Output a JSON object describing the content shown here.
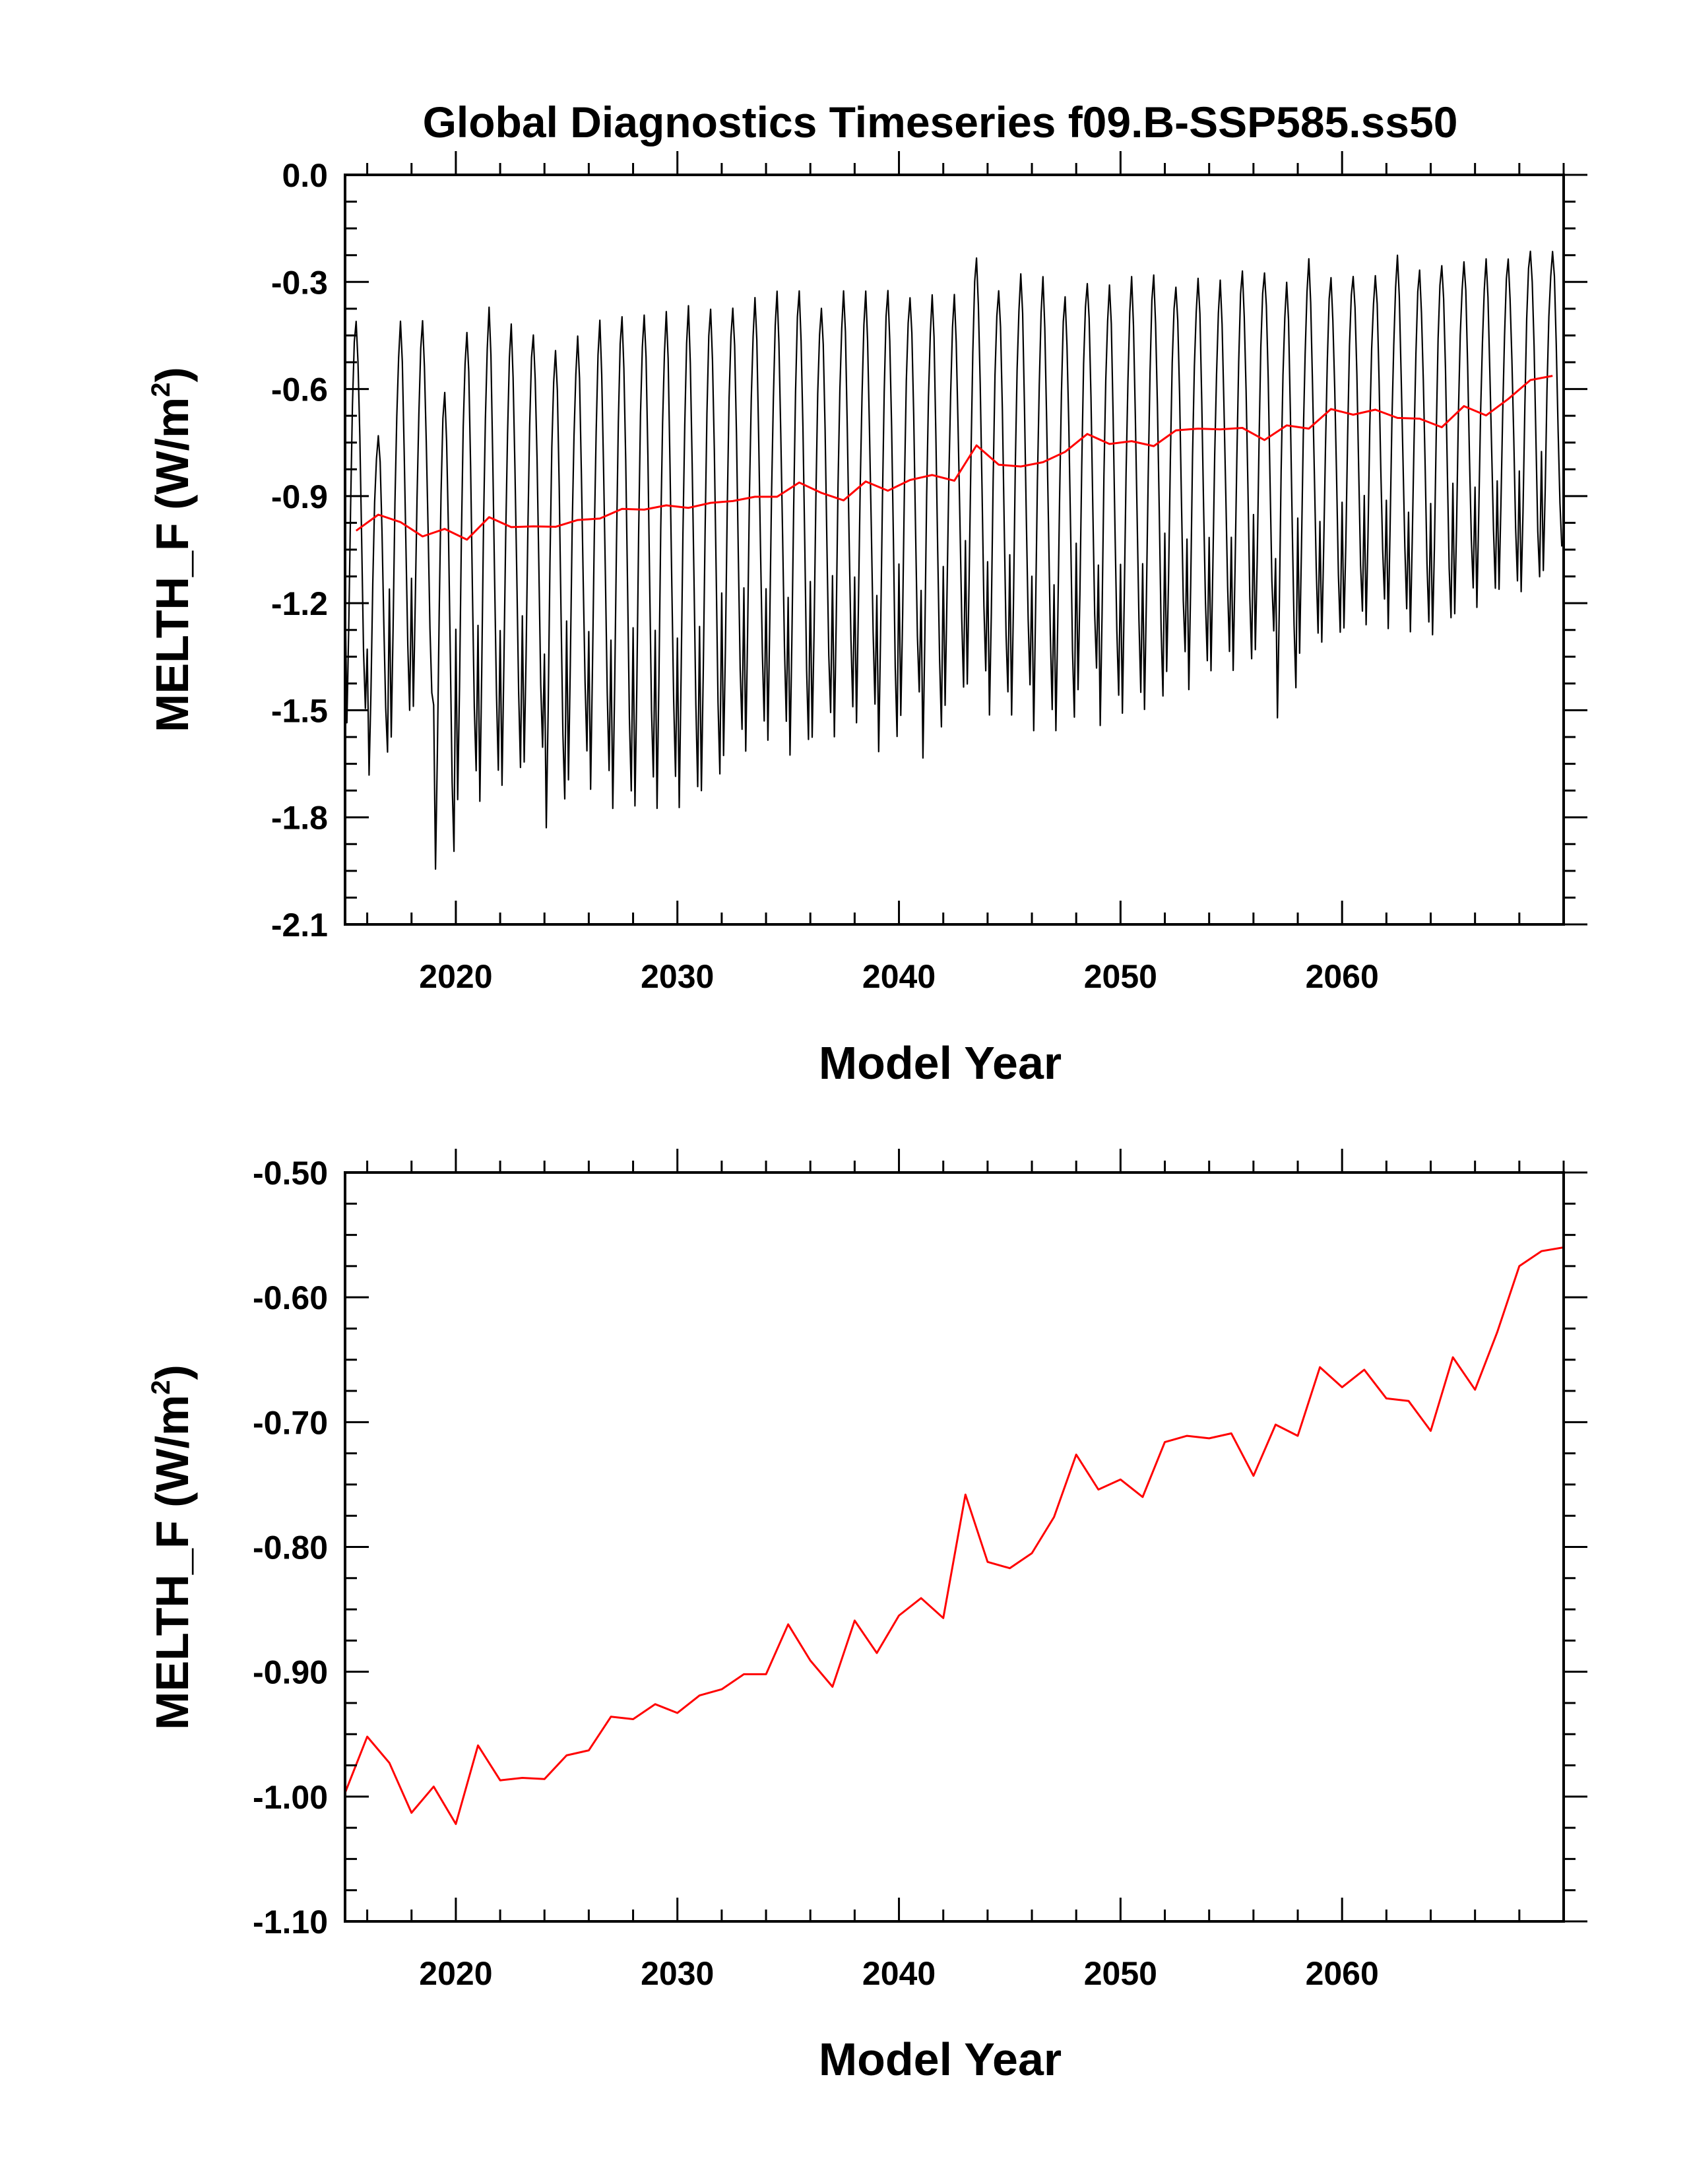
{
  "chart_data": [
    {
      "type": "line",
      "title": "Global Diagnostics Timeseries f09.B-SSP585.ss50",
      "xlabel": "Model Year",
      "ylabel": "MELTH_F (W/m",
      "ylabel_sup": "2",
      "ylabel_close": ")",
      "xlim": [
        2015,
        2070
      ],
      "ylim": [
        -2.1,
        0.0
      ],
      "x_ticks": [
        2020,
        2030,
        2040,
        2050,
        2060
      ],
      "x_tick_labels": [
        "2020",
        "2030",
        "2040",
        "2050",
        "2060"
      ],
      "y_ticks": [
        0.0,
        -0.3,
        -0.6,
        -0.9,
        -1.2,
        -1.5,
        -1.8,
        -2.1
      ],
      "y_tick_labels": [
        "0.0",
        "-0.3",
        "-0.6",
        "-0.9",
        "-1.2",
        "-1.5",
        "-1.8",
        "-2.1"
      ],
      "grid": false,
      "series": [
        {
          "color": "#000000",
          "monthly": true,
          "start_year": 2015,
          "annual_max": [
            -0.4,
            -0.72,
            -0.42,
            -0.42,
            -0.6,
            -0.43,
            -0.38,
            -0.43,
            -0.44,
            -0.48,
            -0.46,
            -0.42,
            -0.39,
            -0.38,
            -0.39,
            -0.38,
            -0.37,
            -0.36,
            -0.35,
            -0.34,
            -0.32,
            -0.36,
            -0.33,
            -0.34,
            -0.32,
            -0.33,
            -0.34,
            -0.35,
            -0.23,
            -0.31,
            -0.28,
            -0.3,
            -0.34,
            -0.29,
            -0.31,
            -0.3,
            -0.28,
            -0.3,
            -0.29,
            -0.31,
            -0.27,
            -0.26,
            -0.3,
            -0.25,
            -0.29,
            -0.27,
            -0.28,
            -0.24,
            -0.27,
            -0.24,
            -0.24,
            -0.25,
            -0.24,
            -0.2,
            -0.21
          ],
          "annual_min": [
            -1.55,
            -1.68,
            -1.56,
            -1.49,
            -1.96,
            -1.75,
            -1.74,
            -1.71,
            -1.66,
            -1.83,
            -1.68,
            -1.72,
            -1.79,
            -1.77,
            -1.76,
            -1.77,
            -1.74,
            -1.63,
            -1.6,
            -1.58,
            -1.64,
            -1.58,
            -1.56,
            -1.53,
            -1.63,
            -1.52,
            -1.62,
            -1.48,
            -1.44,
            -1.52,
            -1.5,
            -1.55,
            -1.57,
            -1.45,
            -1.53,
            -1.5,
            -1.51,
            -1.4,
            -1.43,
            -1.38,
            -1.4,
            -1.34,
            -1.51,
            -1.33,
            -1.32,
            -1.28,
            -1.25,
            -1.26,
            -1.29,
            -1.3,
            -1.22,
            -1.2,
            -1.17,
            -1.18,
            -1.1
          ]
        },
        {
          "color": "#ff0000",
          "x": [
            2015.5,
            2016.5,
            2017.5,
            2018.5,
            2019.5,
            2020.5,
            2021.5,
            2022.5,
            2023.5,
            2024.5,
            2025.5,
            2026.5,
            2027.5,
            2028.5,
            2029.5,
            2030.5,
            2031.5,
            2032.5,
            2033.5,
            2034.5,
            2035.5,
            2036.5,
            2037.5,
            2038.5,
            2039.5,
            2040.5,
            2041.5,
            2042.5,
            2043.5,
            2044.5,
            2045.5,
            2046.5,
            2047.5,
            2048.5,
            2049.5,
            2050.5,
            2051.5,
            2052.5,
            2053.5,
            2054.5,
            2055.5,
            2056.5,
            2057.5,
            2058.5,
            2059.5,
            2060.5,
            2061.5,
            2062.5,
            2063.5,
            2064.5,
            2065.5,
            2066.5,
            2067.5,
            2068.5,
            2069.5
          ],
          "values": [
            -0.997,
            -0.952,
            -0.973,
            -1.013,
            -0.992,
            -1.022,
            -0.959,
            -0.987,
            -0.985,
            -0.986,
            -0.967,
            -0.963,
            -0.936,
            -0.938,
            -0.926,
            -0.933,
            -0.919,
            -0.914,
            -0.902,
            -0.902,
            -0.862,
            -0.891,
            -0.912,
            -0.859,
            -0.885,
            -0.855,
            -0.841,
            -0.857,
            -0.758,
            -0.812,
            -0.817,
            -0.805,
            -0.776,
            -0.726,
            -0.754,
            -0.746,
            -0.76,
            -0.716,
            -0.711,
            -0.713,
            -0.709,
            -0.743,
            -0.702,
            -0.711,
            -0.656,
            -0.672,
            -0.658,
            -0.681,
            -0.683,
            -0.707,
            -0.648,
            -0.674,
            -0.628,
            -0.575,
            -0.563
          ]
        }
      ]
    },
    {
      "type": "line",
      "title": "",
      "xlabel": "Model Year",
      "ylabel": "MELTH_F (W/m",
      "ylabel_sup": "2",
      "ylabel_close": ")",
      "xlim": [
        2015,
        2070
      ],
      "ylim": [
        -1.1,
        -0.5
      ],
      "x_ticks": [
        2020,
        2030,
        2040,
        2050,
        2060
      ],
      "x_tick_labels": [
        "2020",
        "2030",
        "2040",
        "2050",
        "2060"
      ],
      "y_ticks": [
        -0.5,
        -0.6,
        -0.7,
        -0.8,
        -0.9,
        -1.0,
        -1.1
      ],
      "y_tick_labels": [
        "-0.50",
        "-0.60",
        "-0.70",
        "-0.80",
        "-0.90",
        "-1.00",
        "-1.10"
      ],
      "grid": false,
      "series": [
        {
          "color": "#ff0000",
          "x": [
            2015.0,
            2016.0,
            2017.0,
            2018.0,
            2019.0,
            2020.0,
            2021.0,
            2022.0,
            2023.0,
            2024.0,
            2025.0,
            2026.0,
            2027.0,
            2028.0,
            2029.0,
            2030.0,
            2031.0,
            2032.0,
            2033.0,
            2034.0,
            2035.0,
            2036.0,
            2037.0,
            2038.0,
            2039.0,
            2040.0,
            2041.0,
            2042.0,
            2043.0,
            2044.0,
            2045.0,
            2046.0,
            2047.0,
            2048.0,
            2049.0,
            2050.0,
            2051.0,
            2052.0,
            2053.0,
            2054.0,
            2055.0,
            2056.0,
            2057.0,
            2058.0,
            2059.0,
            2060.0,
            2061.0,
            2062.0,
            2063.0,
            2064.0,
            2065.0,
            2066.0,
            2067.0,
            2068.0,
            2069.0,
            2070.0
          ],
          "values": [
            -0.997,
            -0.952,
            -0.973,
            -1.013,
            -0.992,
            -1.022,
            -0.959,
            -0.987,
            -0.985,
            -0.986,
            -0.967,
            -0.963,
            -0.936,
            -0.938,
            -0.926,
            -0.933,
            -0.919,
            -0.914,
            -0.902,
            -0.902,
            -0.862,
            -0.891,
            -0.912,
            -0.859,
            -0.885,
            -0.855,
            -0.841,
            -0.857,
            -0.758,
            -0.812,
            -0.817,
            -0.805,
            -0.776,
            -0.726,
            -0.754,
            -0.746,
            -0.76,
            -0.716,
            -0.711,
            -0.713,
            -0.709,
            -0.743,
            -0.702,
            -0.711,
            -0.656,
            -0.672,
            -0.658,
            -0.681,
            -0.683,
            -0.707,
            -0.648,
            -0.674,
            -0.628,
            -0.575,
            -0.563,
            -0.56
          ]
        }
      ]
    }
  ]
}
